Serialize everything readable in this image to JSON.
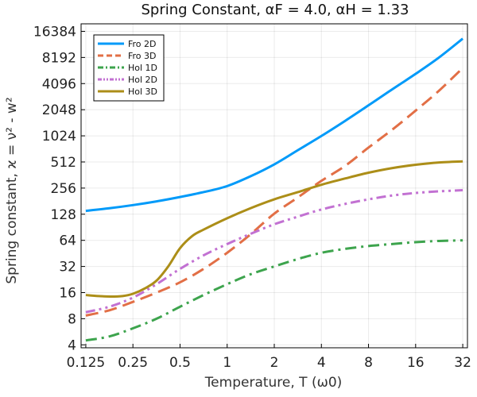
{
  "chart_data": {
    "type": "line",
    "title": "Spring Constant, αF = 4.0, αH = 1.33",
    "xlabel": "Temperature, T (ω0)",
    "ylabel": "Spring constant, ϰ = ν² - w²",
    "xscale": "log2",
    "yscale": "log2",
    "xlim": [
      0.125,
      32
    ],
    "ylim": [
      3.7,
      20000
    ],
    "xticks": [
      {
        "value": 0.125,
        "label": "0.125"
      },
      {
        "value": 0.25,
        "label": "0.25"
      },
      {
        "value": 0.5,
        "label": "0.5"
      },
      {
        "value": 1,
        "label": "1"
      },
      {
        "value": 2,
        "label": "2"
      },
      {
        "value": 4,
        "label": "4"
      },
      {
        "value": 8,
        "label": "8"
      },
      {
        "value": 16,
        "label": "16"
      },
      {
        "value": 32,
        "label": "32"
      }
    ],
    "yticks": [
      {
        "value": 4,
        "label": "4"
      },
      {
        "value": 8,
        "label": "8"
      },
      {
        "value": 16,
        "label": "16"
      },
      {
        "value": 32,
        "label": "32"
      },
      {
        "value": 64,
        "label": "64"
      },
      {
        "value": 128,
        "label": "128"
      },
      {
        "value": 256,
        "label": "256"
      },
      {
        "value": 512,
        "label": "512"
      },
      {
        "value": 1024,
        "label": "1024"
      },
      {
        "value": 2048,
        "label": "2048"
      },
      {
        "value": 4096,
        "label": "4096"
      },
      {
        "value": 8192,
        "label": "8192"
      },
      {
        "value": 16384,
        "label": "16384"
      }
    ],
    "grid": true,
    "legend_position": "top-left",
    "series": [
      {
        "name": "Fro 2D",
        "color": "#009AF9",
        "dash": "solid",
        "x": [
          0.125,
          0.177,
          0.25,
          0.354,
          0.5,
          0.707,
          1,
          1.41,
          2,
          2.83,
          4,
          5.66,
          8,
          11.3,
          16,
          22.6,
          32
        ],
        "y": [
          140,
          150,
          163,
          180,
          202,
          230,
          270,
          350,
          480,
          700,
          1020,
          1520,
          2300,
          3500,
          5300,
          8200,
          13500
        ]
      },
      {
        "name": "Fro 3D",
        "color": "#E26F46",
        "dash": "dash",
        "x": [
          0.125,
          0.177,
          0.25,
          0.354,
          0.5,
          0.707,
          1,
          1.41,
          2,
          2.83,
          4,
          5.66,
          8,
          11.3,
          16,
          22.6,
          32
        ],
        "y": [
          8.7,
          10,
          12.5,
          16,
          21,
          30,
          46,
          75,
          130,
          200,
          310,
          460,
          750,
          1200,
          2000,
          3400,
          6200
        ]
      },
      {
        "name": "Hol 1D",
        "color": "#3DA44D",
        "dash": "dashdot",
        "x": [
          0.125,
          0.177,
          0.25,
          0.354,
          0.5,
          0.707,
          1,
          1.41,
          2,
          2.83,
          4,
          5.66,
          8,
          11.3,
          16,
          22.6,
          32
        ],
        "y": [
          4.5,
          5,
          6.2,
          8,
          11,
          15,
          20,
          26,
          32,
          39,
          46,
          51,
          55,
          58,
          61,
          63,
          64
        ]
      },
      {
        "name": "Hol 2D",
        "color": "#C271D2",
        "dash": "dashdotdot",
        "x": [
          0.125,
          0.177,
          0.25,
          0.354,
          0.5,
          0.707,
          1,
          1.41,
          2,
          2.83,
          4,
          5.66,
          8,
          11.3,
          16,
          22.6,
          32
        ],
        "y": [
          9.5,
          11,
          14,
          20,
          30,
          43,
          58,
          76,
          98,
          120,
          145,
          168,
          190,
          210,
          225,
          235,
          242
        ]
      },
      {
        "name": "Hol 3D",
        "color": "#AC8E18",
        "dash": "solid",
        "x": [
          0.125,
          0.15,
          0.18,
          0.215,
          0.25,
          0.3,
          0.354,
          0.42,
          0.5,
          0.6,
          0.707,
          1,
          1.41,
          2,
          2.83,
          4,
          5.66,
          8,
          11.3,
          16,
          22.6,
          32
        ],
        "y": [
          15,
          14.6,
          14.4,
          14.6,
          15.5,
          18,
          22,
          32,
          52,
          72,
          85,
          115,
          150,
          190,
          230,
          280,
          330,
          385,
          435,
          475,
          505,
          520
        ]
      }
    ]
  }
}
